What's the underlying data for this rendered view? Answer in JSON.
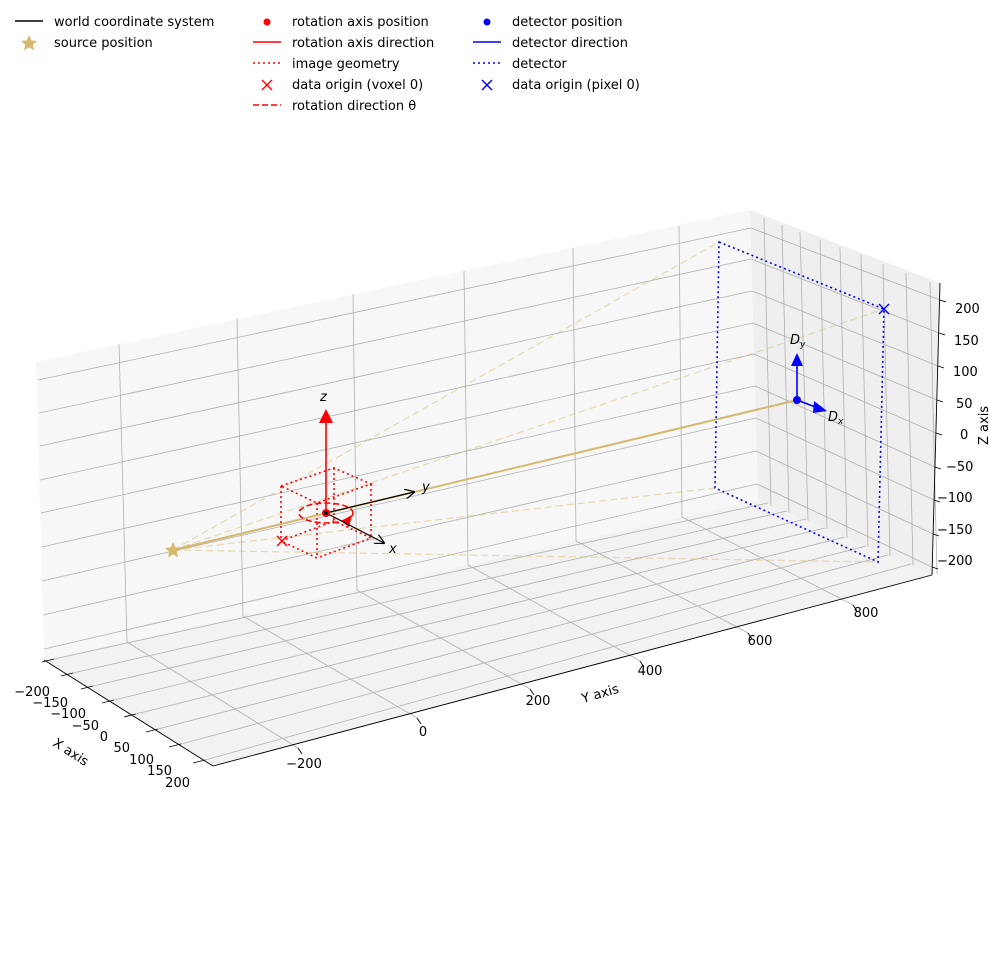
{
  "legend": [
    {
      "label": "world coordinate system",
      "marker": "line",
      "color": "#000000"
    },
    {
      "label": "source position",
      "marker": "star",
      "color": "#d4b96e"
    },
    {
      "label": "rotation axis position",
      "marker": "dot",
      "color": "#ff0000"
    },
    {
      "label": "rotation axis direction",
      "marker": "line",
      "color": "#ff0000"
    },
    {
      "label": "image geometry",
      "marker": "dotted",
      "color": "#ff0000"
    },
    {
      "label": "data origin (voxel 0)",
      "marker": "x",
      "color": "#ff0000"
    },
    {
      "label": "rotation direction θ",
      "marker": "dashed",
      "color": "#ff0000"
    },
    {
      "label": "detector position",
      "marker": "dot",
      "color": "#0000ff"
    },
    {
      "label": "detector direction",
      "marker": "line",
      "color": "#0000ff"
    },
    {
      "label": "detector",
      "marker": "dotted",
      "color": "#0000ff"
    },
    {
      "label": "data origin (pixel 0)",
      "marker": "x",
      "color": "#0000ff"
    }
  ],
  "axes": {
    "x_label": "X axis",
    "y_label": "Y axis",
    "z_label": "Z axis",
    "x_ticks": [
      "−200",
      "−150",
      "−100",
      "−50",
      "0",
      "50",
      "100",
      "150",
      "200"
    ],
    "y_ticks": [
      "−200",
      "0",
      "200",
      "400",
      "600",
      "800"
    ],
    "z_ticks": [
      "200",
      "150",
      "100",
      "50",
      "0",
      "−50",
      "−100",
      "−150",
      "−200"
    ]
  },
  "annotations": {
    "z_arrow": "z",
    "y_arrow": "y",
    "x_arrow": "x",
    "dy_label": "D",
    "dy_sub": "y",
    "dx_label": "D",
    "dx_sub": "x"
  },
  "colors": {
    "source": "#d4b96e",
    "image": "#ff0000",
    "detector": "#0000ff",
    "world": "#000000",
    "grid": "#b0b0b0",
    "pane_back": "#f7f7f7",
    "pane_side": "#efefef",
    "pane_floor": "#f2f2f2"
  }
}
